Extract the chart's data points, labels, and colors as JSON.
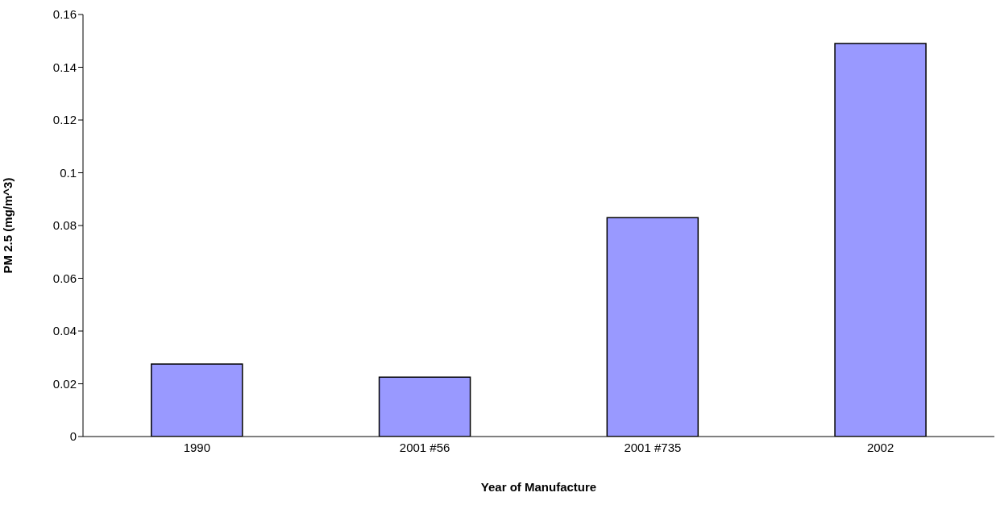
{
  "chart_data": {
    "type": "bar",
    "xlabel": "Year of Manufacture",
    "ylabel": "PM 2.5 (mg/m^3)",
    "categories": [
      "1990",
      "2001 #56",
      "2001 #735",
      "2002"
    ],
    "values": [
      0.0275,
      0.0225,
      0.083,
      0.149
    ],
    "color": "#9999ff",
    "ylim": [
      0,
      0.16
    ],
    "yticks": [
      0,
      0.02,
      0.04,
      0.06,
      0.08,
      0.1,
      0.12,
      0.14,
      0.16
    ],
    "grid": false,
    "legend": false
  }
}
